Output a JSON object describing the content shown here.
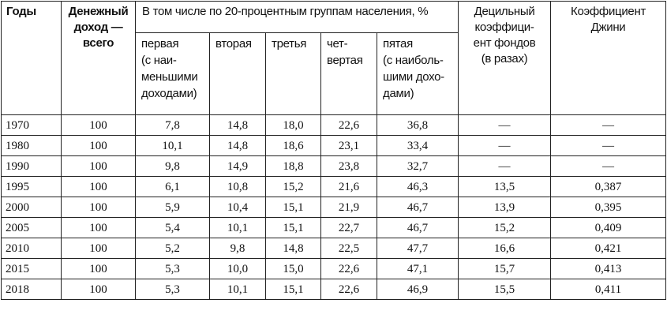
{
  "headers": {
    "years": "Годы",
    "income_total": [
      "Денежный",
      "доход —",
      "всего"
    ],
    "groups_title": "В том числе по 20-процентным группам населения, %",
    "decile": [
      "Децильный",
      "коэффици-",
      "ент фондов",
      "(в разах)"
    ],
    "gini": [
      "Коэффициент",
      "Джини"
    ],
    "groups": [
      [
        "первая",
        "(с наи-",
        "меньшими",
        "доходами)"
      ],
      [
        "вторая"
      ],
      [
        "третья"
      ],
      [
        "чет-",
        "вертая"
      ],
      [
        "пятая",
        "(с наиболь-",
        "шими дохо-",
        "дами)"
      ]
    ]
  },
  "rows": [
    {
      "year": "1970",
      "total": "100",
      "g1": "7,8",
      "g2": "14,8",
      "g3": "18,0",
      "g4": "22,6",
      "g5": "36,8",
      "decile": "—",
      "gini": "—"
    },
    {
      "year": "1980",
      "total": "100",
      "g1": "10,1",
      "g2": "14,8",
      "g3": "18,6",
      "g4": "23,1",
      "g5": "33,4",
      "decile": "—",
      "gini": "—"
    },
    {
      "year": "1990",
      "total": "100",
      "g1": "9,8",
      "g2": "14,9",
      "g3": "18,8",
      "g4": "23,8",
      "g5": "32,7",
      "decile": "—",
      "gini": "—"
    },
    {
      "year": "1995",
      "total": "100",
      "g1": "6,1",
      "g2": "10,8",
      "g3": "15,2",
      "g4": "21,6",
      "g5": "46,3",
      "decile": "13,5",
      "gini": "0,387"
    },
    {
      "year": "2000",
      "total": "100",
      "g1": "5,9",
      "g2": "10,4",
      "g3": "15,1",
      "g4": "21,9",
      "g5": "46,7",
      "decile": "13,9",
      "gini": "0,395"
    },
    {
      "year": "2005",
      "total": "100",
      "g1": "5,4",
      "g2": "10,1",
      "g3": "15,1",
      "g4": "22,7",
      "g5": "46,7",
      "decile": "15,2",
      "gini": "0,409"
    },
    {
      "year": "2010",
      "total": "100",
      "g1": "5,2",
      "g2": "9,8",
      "g3": "14,8",
      "g4": "22,5",
      "g5": "47,7",
      "decile": "16,6",
      "gini": "0,421"
    },
    {
      "year": "2015",
      "total": "100",
      "g1": "5,3",
      "g2": "10,0",
      "g3": "15,0",
      "g4": "22,6",
      "g5": "47,1",
      "decile": "15,7",
      "gini": "0,413"
    },
    {
      "year": "2018",
      "total": "100",
      "g1": "5,3",
      "g2": "10,1",
      "g3": "15,1",
      "g4": "22,6",
      "g5": "46,9",
      "decile": "15,5",
      "gini": "0,411"
    }
  ]
}
